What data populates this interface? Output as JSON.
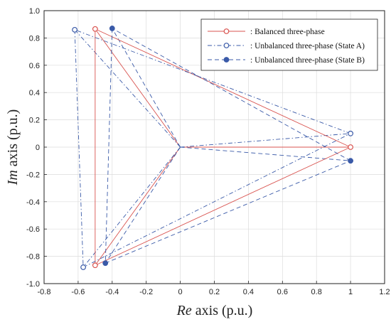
{
  "chart_data": {
    "type": "line",
    "xlabel_italic": "Re",
    "xlabel_rest": " axis (p.u.)",
    "ylabel_italic": "Im",
    "ylabel_rest": " axis (p.u.)",
    "xlim": [
      -0.8,
      1.2
    ],
    "ylim": [
      -1.0,
      1.0
    ],
    "xticks": [
      "-0.8",
      "-0.6",
      "-0.4",
      "-0.2",
      "0",
      "0.2",
      "0.4",
      "0.6",
      "0.8",
      "1",
      "1.2"
    ],
    "yticks": [
      "-1.0",
      "-0.8",
      "-0.6",
      "-0.4",
      "-0.2",
      "0",
      "0.2",
      "0.4",
      "0.6",
      "0.8",
      "1.0"
    ],
    "grid": true,
    "legend_position": "top-right",
    "series": [
      {
        "name": ": Balanced three-phase",
        "color": "#d9534f",
        "line_style": "solid",
        "marker": "open-circle",
        "points": [
          [
            1.0,
            0.0
          ],
          [
            -0.5,
            0.866
          ],
          [
            -0.5,
            -0.866
          ]
        ]
      },
      {
        "name": ": Unbalanced three-phase (State A)",
        "color": "#3a5aa8",
        "line_style": "dashdot",
        "marker": "open-circle",
        "points": [
          [
            1.0,
            0.1
          ],
          [
            -0.62,
            0.86
          ],
          [
            -0.57,
            -0.88
          ]
        ]
      },
      {
        "name": ": Unbalanced three-phase (State B)",
        "color": "#3a5aa8",
        "line_style": "dashed",
        "marker": "filled-circle",
        "points": [
          [
            1.0,
            -0.1
          ],
          [
            -0.4,
            0.87
          ],
          [
            -0.44,
            -0.85
          ]
        ]
      }
    ]
  }
}
